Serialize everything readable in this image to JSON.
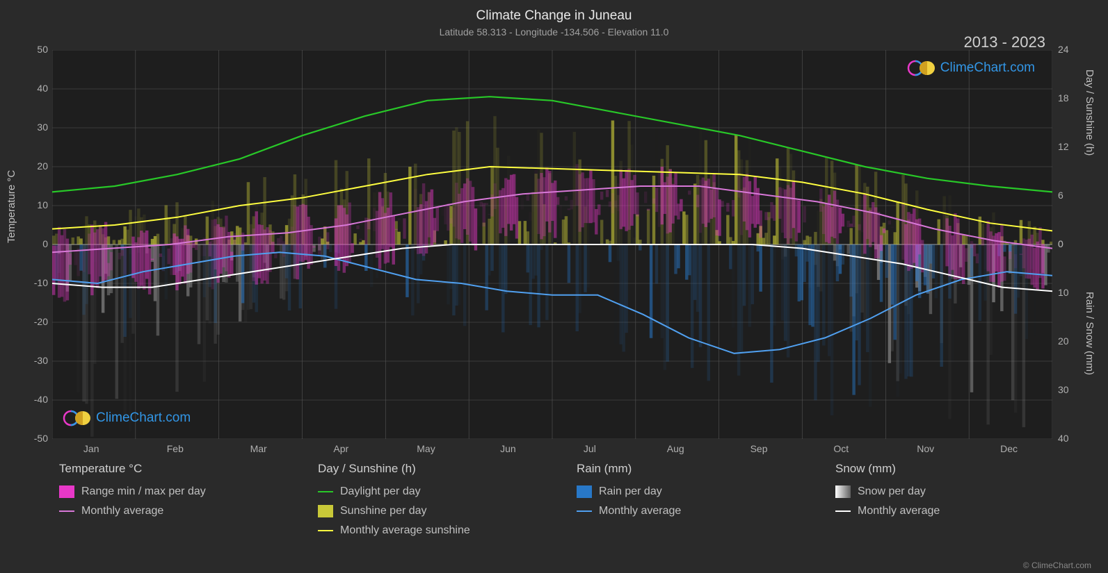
{
  "title": "Climate Change in Juneau",
  "subtitle": "Latitude 58.313 - Longitude -134.506 - Elevation 11.0",
  "year_range": "2013 - 2023",
  "copyright": "© ClimeChart.com",
  "watermark_text": "ClimeChart.com",
  "chart": {
    "background_color": "#2a2a2a",
    "plot_background": "#1e1e1e",
    "grid_color": "#555555",
    "grid_strong_color": "#888888",
    "text_color": "#c0c0c0",
    "left_axis": {
      "label": "Temperature °C",
      "min": -50,
      "max": 50,
      "ticks": [
        -50,
        -40,
        -30,
        -20,
        -10,
        0,
        10,
        20,
        30,
        40,
        50
      ]
    },
    "right_axis_top": {
      "label": "Day / Sunshine (h)",
      "min": 0,
      "max": 24,
      "ticks": [
        0,
        6,
        12,
        18,
        24
      ]
    },
    "right_axis_bottom": {
      "label": "Rain / Snow (mm)",
      "min": 0,
      "max": 40,
      "ticks": [
        0,
        10,
        20,
        30,
        40
      ]
    },
    "x_axis": {
      "labels": [
        "Jan",
        "Feb",
        "Mar",
        "Apr",
        "May",
        "Jun",
        "Jul",
        "Aug",
        "Sep",
        "Oct",
        "Nov",
        "Dec"
      ]
    },
    "colors": {
      "temp_range": "#e838c8",
      "temp_avg": "#d878d8",
      "daylight": "#28c828",
      "sunshine_bars": "#c8c838",
      "sunshine_avg": "#ffff40",
      "rain_bars": "#2878c8",
      "rain_avg": "#50a0f0",
      "snow_bars": "#a0a0a0",
      "snow_avg": "#ffffff"
    },
    "daylight_line": [
      13.5,
      15,
      18,
      22,
      28,
      33,
      37,
      38,
      37,
      34,
      31,
      28,
      24,
      20,
      17,
      15,
      13.5
    ],
    "sunshine_avg_line": [
      4,
      5,
      7,
      10,
      12,
      15,
      18,
      20,
      19.5,
      19,
      18.5,
      18,
      16,
      13,
      9,
      5.5,
      3.5
    ],
    "temp_avg_line": [
      -2,
      -1,
      0,
      2,
      3,
      5,
      8,
      11,
      13,
      14,
      15,
      15,
      13,
      11,
      8,
      4,
      1,
      -1
    ],
    "temp_max_line": [
      2,
      3,
      4,
      6,
      7,
      9,
      12,
      15,
      17,
      18,
      18,
      17,
      15,
      13,
      10,
      6,
      3,
      1
    ],
    "temp_min_line": [
      -6,
      -5,
      -4,
      -2,
      -1,
      1,
      4,
      7,
      9,
      10,
      11,
      11,
      9,
      7,
      4,
      0,
      -3,
      -5
    ],
    "rain_avg_line": [
      -9,
      -10,
      -7,
      -5,
      -3,
      -2,
      -3,
      -6,
      -9,
      -10,
      -12,
      -13,
      -13,
      -18,
      -24,
      -28,
      -27,
      -24,
      -19,
      -13,
      -9,
      -7,
      -8
    ],
    "snow_avg_line": [
      -10,
      -11,
      -11,
      -9,
      -7,
      -5,
      -3,
      -1,
      0,
      0,
      0,
      0,
      0,
      0,
      0,
      -1,
      -3,
      -5,
      -8,
      -11,
      -12
    ]
  },
  "legend": {
    "groups": [
      {
        "title": "Temperature °C",
        "items": [
          {
            "type": "swatch",
            "color": "#e838c8",
            "label": "Range min / max per day"
          },
          {
            "type": "line",
            "color": "#d878d8",
            "label": "Monthly average"
          }
        ]
      },
      {
        "title": "Day / Sunshine (h)",
        "items": [
          {
            "type": "line",
            "color": "#28c828",
            "label": "Daylight per day"
          },
          {
            "type": "swatch",
            "color": "#c8c838",
            "label": "Sunshine per day"
          },
          {
            "type": "line",
            "color": "#ffff40",
            "label": "Monthly average sunshine"
          }
        ]
      },
      {
        "title": "Rain (mm)",
        "items": [
          {
            "type": "swatch",
            "color": "#2878c8",
            "label": "Rain per day"
          },
          {
            "type": "line",
            "color": "#50a0f0",
            "label": "Monthly average"
          }
        ]
      },
      {
        "title": "Snow (mm)",
        "items": [
          {
            "type": "swatch-gradient",
            "color": "#d0d0d0",
            "label": "Snow per day"
          },
          {
            "type": "line",
            "color": "#ffffff",
            "label": "Monthly average"
          }
        ]
      }
    ]
  }
}
